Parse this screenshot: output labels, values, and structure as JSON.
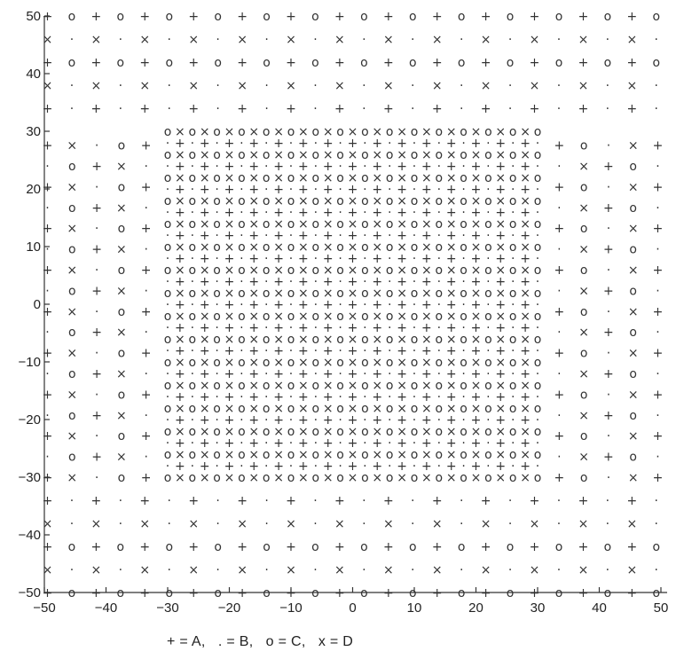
{
  "chart_data": {
    "type": "scatter",
    "title": "",
    "xlabel": "",
    "ylabel": "",
    "xlim": [
      -50,
      50
    ],
    "ylim": [
      -50,
      50
    ],
    "xticks": [
      -50,
      -40,
      -30,
      -20,
      -10,
      0,
      10,
      20,
      30,
      40,
      50
    ],
    "yticks": [
      50,
      40,
      30,
      20,
      10,
      0,
      -10,
      -20,
      -30,
      -40,
      -50
    ],
    "grid": false,
    "legend_text": "+ = A,   . = B,   o = C,   x = D",
    "categories": [
      {
        "symbol": "+",
        "label": "A"
      },
      {
        "symbol": ".",
        "label": "B"
      },
      {
        "symbol": "o",
        "label": "C"
      },
      {
        "symbol": "x",
        "label": "D"
      }
    ],
    "structure": {
      "inner_lattice": {
        "x_range": [
          -30,
          30
        ],
        "y_range": [
          -30,
          30
        ],
        "step": 2
      },
      "ring_rows": [
        50,
        46,
        42,
        38,
        34,
        -34,
        -38,
        -42,
        -46,
        -50
      ],
      "ring_cols": [
        -49.5,
        -45.5,
        -41.5,
        -37.5,
        -33.5,
        33.5,
        37.5,
        41.5,
        45.5,
        49.5
      ]
    }
  }
}
